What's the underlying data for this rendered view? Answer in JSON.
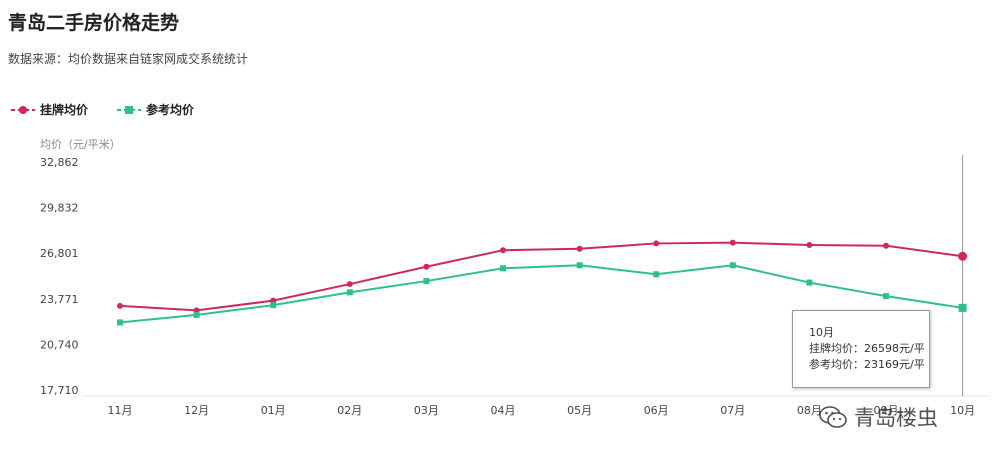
{
  "title": "青岛二手房价格走势",
  "subtitle": "数据来源：均价数据来自链家网成交系统统计",
  "colors": {
    "listing": "#cc2a5e",
    "reference": "#2fbf8f"
  },
  "tooltip": {
    "month": "10月",
    "listing_line": "挂牌均价：26598元/平",
    "reference_line": "参考均价：23169元/平"
  },
  "watermark": {
    "text": "青岛楼虫",
    "icon": "wechat-icon"
  },
  "chart_data": {
    "type": "line",
    "title": "",
    "ylabel": "均价（元/平米）",
    "xlabel": "",
    "ylim": [
      17710,
      32862
    ],
    "yticks": [
      "32,862",
      "29,832",
      "26,801",
      "23,771",
      "20,740",
      "17,710"
    ],
    "ytick_values": [
      32862,
      29832,
      26801,
      23771,
      20740,
      17710
    ],
    "categories": [
      "11月",
      "12月",
      "01月",
      "02月",
      "03月",
      "04月",
      "05月",
      "06月",
      "07月",
      "08月",
      "09月",
      "10月"
    ],
    "series": [
      {
        "name": "挂牌均价",
        "marker": "circle",
        "values": [
          23300,
          23000,
          23650,
          24750,
          25900,
          27000,
          27100,
          27450,
          27500,
          27350,
          27300,
          26598
        ]
      },
      {
        "name": "参考均价",
        "marker": "square",
        "values": [
          22200,
          22700,
          23350,
          24200,
          24950,
          25800,
          26000,
          25400,
          26000,
          24850,
          23950,
          23169
        ]
      }
    ],
    "grid": false,
    "legend": "top-left",
    "highlight_index": 11
  }
}
